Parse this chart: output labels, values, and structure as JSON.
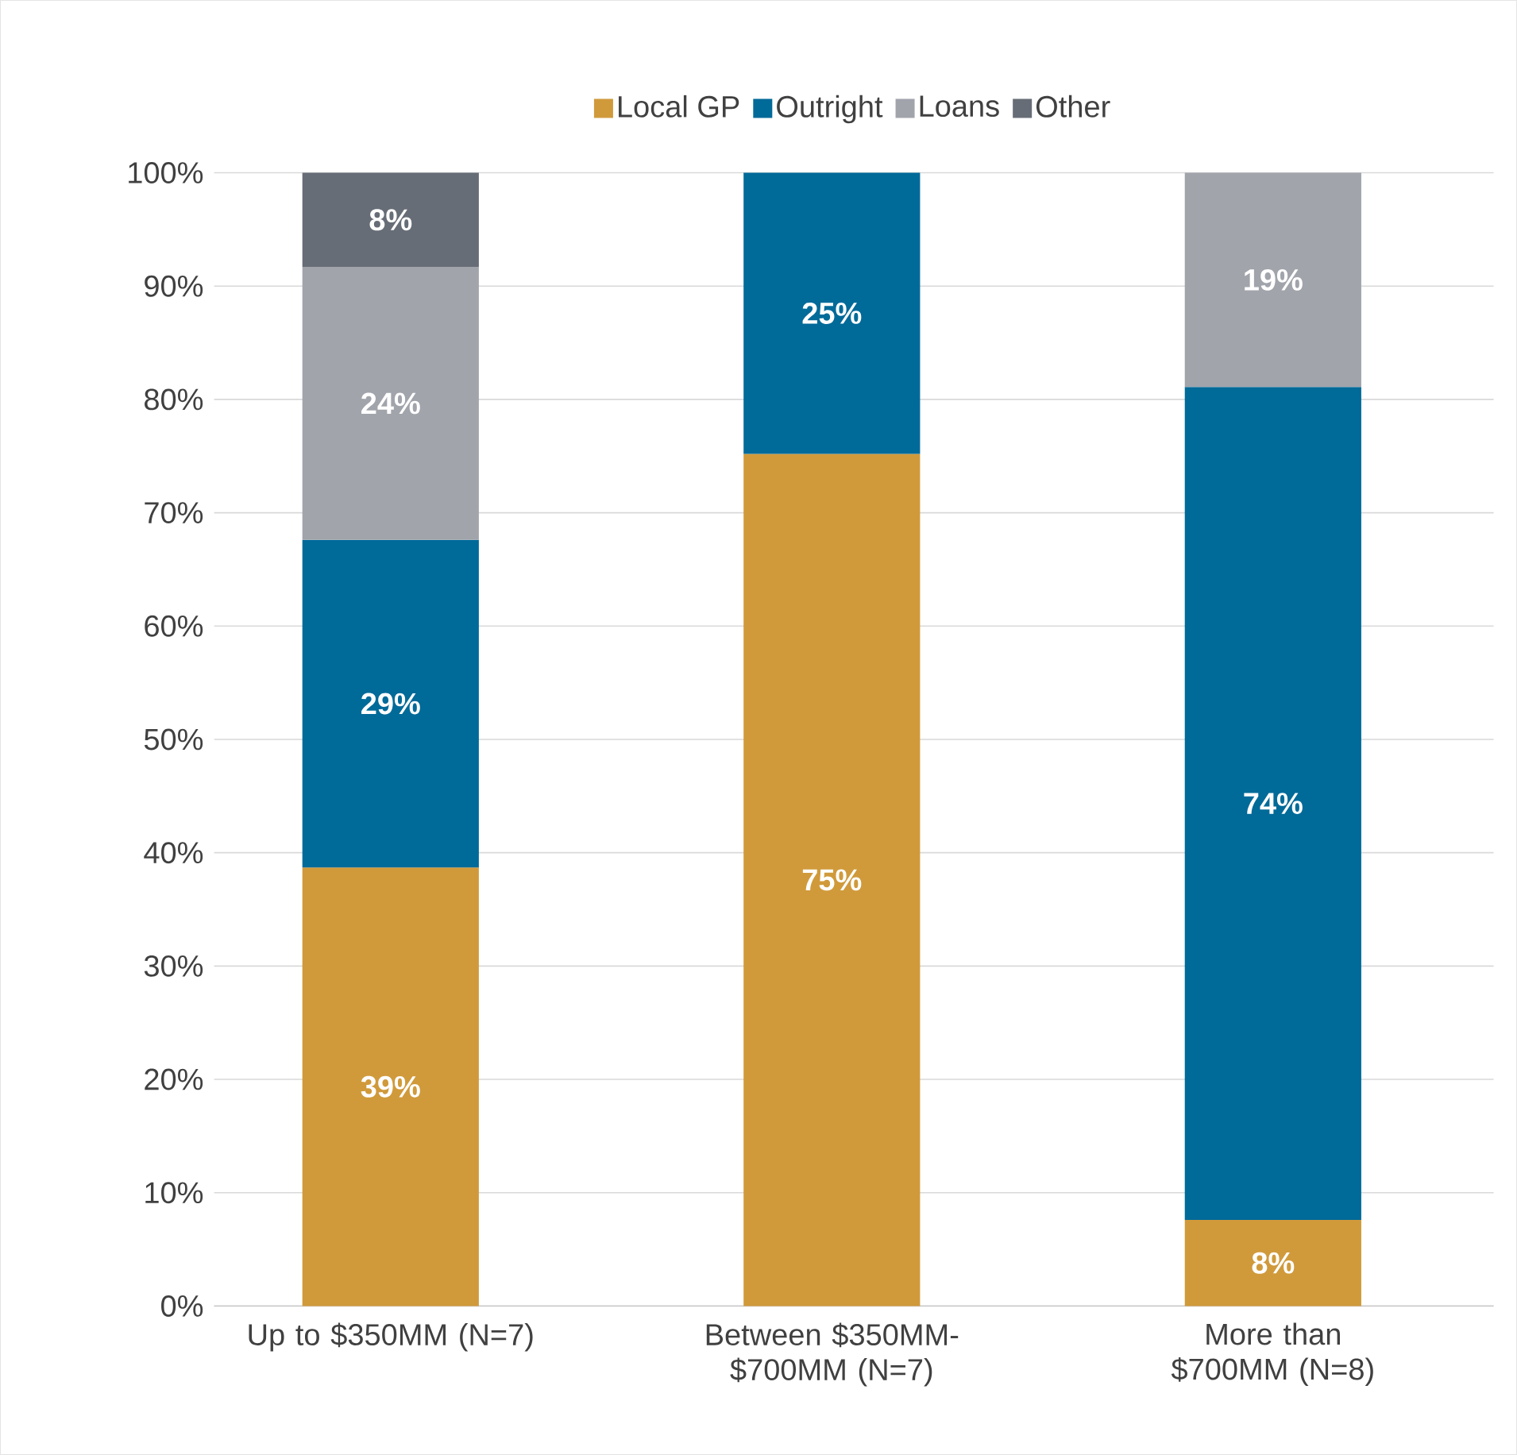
{
  "chart_data": {
    "type": "bar",
    "stacked": true,
    "categories": [
      "Up to $350MM (N=7)",
      "Between $350MM-$700MM (N=7)",
      "More than $700MM (N=8)"
    ],
    "series": [
      {
        "name": "Local GP",
        "color": "#d09a3b",
        "values": [
          38.7,
          75.2,
          7.6
        ],
        "value_labels": [
          "39%",
          "75%",
          "8%"
        ]
      },
      {
        "name": "Outright",
        "color": "#006a99",
        "values": [
          28.9,
          24.8,
          73.5
        ],
        "value_labels": [
          "29%",
          "25%",
          "74%"
        ]
      },
      {
        "name": "Loans",
        "color": "#a1a4ab",
        "values": [
          24.1,
          null,
          18.9
        ],
        "value_labels": [
          "24%",
          null,
          "19%"
        ]
      },
      {
        "name": "Other",
        "color": "#676d76",
        "values": [
          8.3,
          null,
          null
        ],
        "value_labels": [
          "8%",
          null,
          null
        ]
      }
    ],
    "ylim": [
      0,
      100
    ],
    "yticks": [
      {
        "value": 0,
        "label": "0%"
      },
      {
        "value": 10,
        "label": "10%"
      },
      {
        "value": 20,
        "label": "20%"
      },
      {
        "value": 30,
        "label": "30%"
      },
      {
        "value": 40,
        "label": "40%"
      },
      {
        "value": 50,
        "label": "50%"
      },
      {
        "value": 60,
        "label": "60%"
      },
      {
        "value": 70,
        "label": "70%"
      },
      {
        "value": 80,
        "label": "80%"
      },
      {
        "value": 90,
        "label": "90%"
      },
      {
        "value": 100,
        "label": "100%"
      }
    ],
    "grid": "y",
    "legend": "top"
  }
}
